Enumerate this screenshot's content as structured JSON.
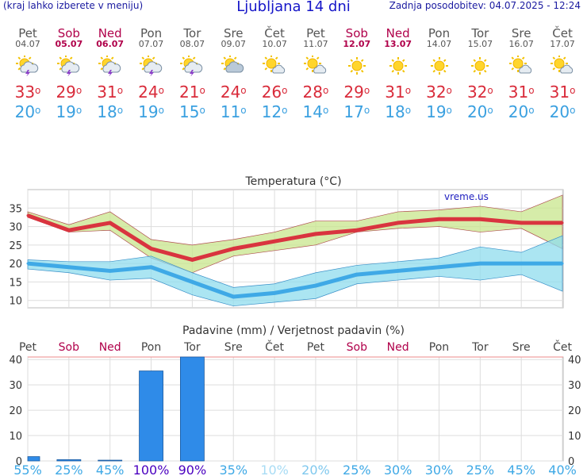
{
  "header": {
    "note": "(kraj lahko izberete v meniju)",
    "title": "Ljubljana 14 dni",
    "updated": "Zadnja posodobitev: 04.07.2025 - 12:24"
  },
  "days": [
    {
      "name": "Pet",
      "date": "04.07",
      "weekend": false,
      "icon": "sun-cloud-thunder-icon",
      "tmax": "33",
      "tmin": "20"
    },
    {
      "name": "Sob",
      "date": "05.07",
      "weekend": true,
      "icon": "sun-cloud-thunder-icon",
      "tmax": "29",
      "tmin": "19"
    },
    {
      "name": "Ned",
      "date": "06.07",
      "weekend": true,
      "icon": "sun-cloud-thunder-icon",
      "tmax": "31",
      "tmin": "18"
    },
    {
      "name": "Pon",
      "date": "07.07",
      "weekend": false,
      "icon": "sun-cloud-thunder-icon",
      "tmax": "24",
      "tmin": "19"
    },
    {
      "name": "Tor",
      "date": "08.07",
      "weekend": false,
      "icon": "sun-cloud-thunder-icon",
      "tmax": "21",
      "tmin": "15"
    },
    {
      "name": "Sre",
      "date": "09.07",
      "weekend": false,
      "icon": "sun-cloud-icon",
      "tmax": "24",
      "tmin": "11"
    },
    {
      "name": "Čet",
      "date": "10.07",
      "weekend": false,
      "icon": "sun-small-cloud-icon",
      "tmax": "26",
      "tmin": "12"
    },
    {
      "name": "Pet",
      "date": "11.07",
      "weekend": false,
      "icon": "sun-small-cloud-icon",
      "tmax": "28",
      "tmin": "14"
    },
    {
      "name": "Sob",
      "date": "12.07",
      "weekend": true,
      "icon": "sun-icon",
      "tmax": "29",
      "tmin": "17"
    },
    {
      "name": "Ned",
      "date": "13.07",
      "weekend": true,
      "icon": "sun-icon",
      "tmax": "31",
      "tmin": "18"
    },
    {
      "name": "Pon",
      "date": "14.07",
      "weekend": false,
      "icon": "sun-icon",
      "tmax": "32",
      "tmin": "19"
    },
    {
      "name": "Tor",
      "date": "15.07",
      "weekend": false,
      "icon": "sun-icon",
      "tmax": "32",
      "tmin": "20"
    },
    {
      "name": "Sre",
      "date": "16.07",
      "weekend": false,
      "icon": "sun-small-cloud-icon",
      "tmax": "31",
      "tmin": "20"
    },
    {
      "name": "Čet",
      "date": "17.07",
      "weekend": false,
      "icon": "sun-small-cloud-icon",
      "tmax": "31",
      "tmin": "20"
    }
  ],
  "chart_data": [
    {
      "type": "line",
      "title": "Temperatura (°C)",
      "watermark": "vreme.us",
      "categories": [
        "Pet",
        "Sob",
        "Ned",
        "Pon",
        "Tor",
        "Sre",
        "Čet",
        "Pet",
        "Sob",
        "Ned",
        "Pon",
        "Tor",
        "Sre",
        "Čet"
      ],
      "ylim": [
        8,
        40
      ],
      "yticks": [
        10,
        15,
        20,
        25,
        30,
        35
      ],
      "grid": true,
      "series": [
        {
          "color": "#d9343f",
          "values": [
            33,
            29,
            31,
            24,
            21,
            24,
            26,
            28,
            29,
            31,
            32,
            32,
            31,
            31
          ]
        },
        {
          "color": "#3fa9e6",
          "values": [
            20,
            19,
            18,
            19,
            15,
            11,
            12,
            14,
            17,
            18,
            19,
            20,
            20,
            20
          ]
        }
      ],
      "bands": [
        {
          "color": "#c8e68c",
          "upper": [
            34,
            30.5,
            34,
            26.5,
            25,
            26.5,
            28.5,
            31.5,
            31.5,
            34,
            34.5,
            35.5,
            34,
            38.5
          ],
          "lower": [
            32.5,
            28.5,
            29,
            21.5,
            17.5,
            22,
            23.5,
            25,
            28.5,
            29.5,
            30,
            28.5,
            29.5,
            24
          ]
        },
        {
          "color": "#8fdcee",
          "upper": [
            21,
            20.5,
            20.5,
            22,
            17.5,
            13.5,
            14.5,
            17.5,
            19.5,
            20.5,
            21.5,
            24.5,
            23,
            27.5
          ],
          "lower": [
            18.5,
            17.5,
            15.5,
            16,
            11.5,
            8.5,
            9.5,
            10.5,
            14.5,
            15.5,
            16.5,
            15.5,
            17,
            12.5
          ]
        }
      ]
    },
    {
      "type": "bar",
      "title": "Padavine (mm) / Verjetnost padavin (%)",
      "categories": [
        "Pet",
        "Sob",
        "Ned",
        "Pon",
        "Tor",
        "Sre",
        "Čet",
        "Pet",
        "Sob",
        "Ned",
        "Pon",
        "Tor",
        "Sre",
        "Čet"
      ],
      "ylim": [
        0,
        41
      ],
      "yticks": [
        0,
        10,
        20,
        30,
        40
      ],
      "grid": true,
      "values": [
        1.7,
        0.5,
        0.3,
        35.5,
        41,
        0,
        0,
        0,
        0,
        0,
        0,
        0,
        0,
        0
      ],
      "bar_color": "#2f8be8",
      "probabilities": [
        "55%",
        "25%",
        "45%",
        "100%",
        "90%",
        "35%",
        "10%",
        "20%",
        "25%",
        "30%",
        "30%",
        "25%",
        "45%",
        "40%"
      ],
      "probability_colors": [
        "#3fa9e6",
        "#3fa9e6",
        "#3fa9e6",
        "#4a00c0",
        "#4a00c0",
        "#3fa9e6",
        "#a8dcf5",
        "#7fc8ee",
        "#3fa9e6",
        "#3fa9e6",
        "#3fa9e6",
        "#3fa9e6",
        "#3fa9e6",
        "#3fa9e6"
      ]
    }
  ],
  "colors": {
    "max": "#d92b3a",
    "min": "#3aa0e0",
    "weekend": "#b0004a",
    "header": "#1515c8"
  }
}
